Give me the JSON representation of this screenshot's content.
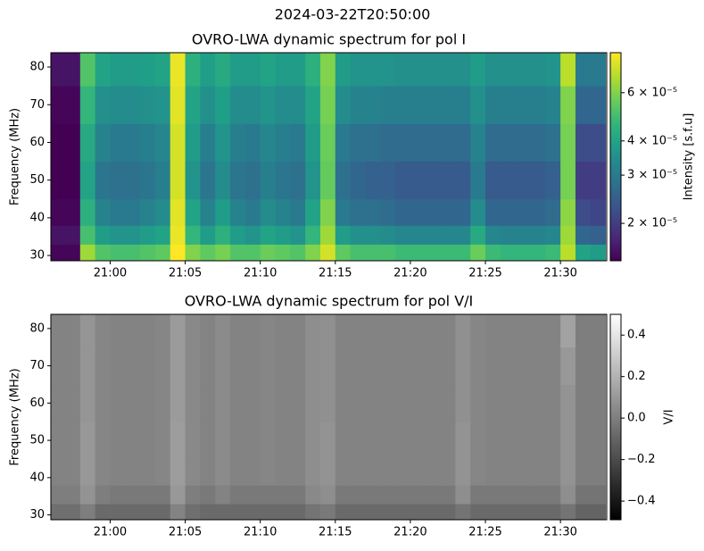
{
  "title": "2024-03-22T20:50:00",
  "chart_data": [
    {
      "type": "heatmap",
      "title": "OVRO-LWA dynamic spectrum for pol I",
      "ylabel": "Frequency (MHz)",
      "colorbar_label": "Intensity [s.f.u]",
      "colormap": "viridis",
      "zscale": "log",
      "x": [
        "20:56",
        "20:57",
        "20:58",
        "20:59",
        "21:00",
        "21:01",
        "21:02",
        "21:03",
        "21:04",
        "21:05",
        "21:06",
        "21:07",
        "21:08",
        "21:09",
        "21:10",
        "21:11",
        "21:12",
        "21:13",
        "21:14",
        "21:15",
        "21:16",
        "21:17",
        "21:18",
        "21:19",
        "21:20",
        "21:21",
        "21:22",
        "21:23",
        "21:24",
        "21:25",
        "21:26",
        "21:27",
        "21:28",
        "21:29",
        "21:30",
        "21:31",
        "21:32",
        "21:33"
      ],
      "xlim": [
        "20:56:03",
        "21:33:05"
      ],
      "xticks": [
        "21:00",
        "21:05",
        "21:10",
        "21:15",
        "21:20",
        "21:25",
        "21:30"
      ],
      "y": [
        28.6,
        33,
        38,
        45,
        55,
        65,
        75,
        83.8
      ],
      "ylim": [
        28.6,
        83.8
      ],
      "yticks": [
        30,
        40,
        50,
        60,
        70,
        80
      ],
      "zlim": [
        1.46e-05,
        8.4e-05
      ],
      "zticks": [
        {
          "value": 2e-05,
          "label": "2 × 10⁻⁵"
        },
        {
          "value": 3e-05,
          "label": "3 × 10⁻⁵"
        },
        {
          "value": 4e-05,
          "label": "4 × 10⁻⁵"
        },
        {
          "value": 6e-05,
          "label": "6 × 10⁻⁵"
        }
      ],
      "z": [
        [
          1.5e-05,
          1.5e-05,
          6.5e-05,
          5.2e-05,
          5e-05,
          5e-05,
          5.2e-05,
          5.4e-05,
          8.4e-05,
          6e-05,
          5.4e-05,
          5.8e-05,
          5.2e-05,
          5.2e-05,
          5.6e-05,
          5.4e-05,
          5.2e-05,
          6e-05,
          7.5e-05,
          5.4e-05,
          5e-05,
          5e-05,
          5e-05,
          4.8e-05,
          4.8e-05,
          4.8e-05,
          4.8e-05,
          4.8e-05,
          5.6e-05,
          4.8e-05,
          4.6e-05,
          4.6e-05,
          4.6e-05,
          4.8e-05,
          7e-05,
          4e-05,
          3.8e-05
        ],
        [
          1.6e-05,
          1.6e-05,
          5e-05,
          3.8e-05,
          3.6e-05,
          3.6e-05,
          3.8e-05,
          4e-05,
          8e-05,
          4.6e-05,
          3.8e-05,
          4.4e-05,
          3.8e-05,
          3.6e-05,
          4e-05,
          3.8e-05,
          3.6e-05,
          4.6e-05,
          6.5e-05,
          3.8e-05,
          3.5e-05,
          3.5e-05,
          3.4e-05,
          3.3e-05,
          3.3e-05,
          3.3e-05,
          3.3e-05,
          3.3e-05,
          4.2e-05,
          3.3e-05,
          3.2e-05,
          3.2e-05,
          3.2e-05,
          3.3e-05,
          6.5e-05,
          2.6e-05,
          2.5e-05
        ],
        [
          1.5e-05,
          1.5e-05,
          4.4e-05,
          3.2e-05,
          3e-05,
          3e-05,
          3.2e-05,
          3.4e-05,
          7.8e-05,
          4e-05,
          3.2e-05,
          3.8e-05,
          3.2e-05,
          3e-05,
          3.4e-05,
          3.2e-05,
          3e-05,
          4e-05,
          6e-05,
          3e-05,
          2.8e-05,
          2.8e-05,
          2.7e-05,
          2.6e-05,
          2.6e-05,
          2.6e-05,
          2.6e-05,
          2.6e-05,
          3.4e-05,
          2.6e-05,
          2.6e-05,
          2.6e-05,
          2.6e-05,
          2.7e-05,
          6.2e-05,
          2.2e-05,
          2.1e-05
        ],
        [
          1.4e-05,
          1.4e-05,
          4e-05,
          2.9e-05,
          2.8e-05,
          2.8e-05,
          2.9e-05,
          3.1e-05,
          7.5e-05,
          3.6e-05,
          2.9e-05,
          3.4e-05,
          2.9e-05,
          2.8e-05,
          3.1e-05,
          2.9e-05,
          2.8e-05,
          3.6e-05,
          5.5e-05,
          2.8e-05,
          2.6e-05,
          2.5e-05,
          2.5e-05,
          2.4e-05,
          2.4e-05,
          2.4e-05,
          2.4e-05,
          2.4e-05,
          3e-05,
          2.4e-05,
          2.4e-05,
          2.4e-05,
          2.4e-05,
          2.5e-05,
          5.8e-05,
          2e-05,
          2e-05
        ],
        [
          1.4e-05,
          1.4e-05,
          4.2e-05,
          3.2e-05,
          3e-05,
          3e-05,
          3.1e-05,
          3.3e-05,
          7.5e-05,
          3.8e-05,
          3.1e-05,
          3.6e-05,
          3.1e-05,
          3e-05,
          3.3e-05,
          3.1e-05,
          3e-05,
          3.8e-05,
          5.6e-05,
          3e-05,
          2.8e-05,
          2.8e-05,
          2.7e-05,
          2.7e-05,
          2.7e-05,
          2.7e-05,
          2.7e-05,
          2.7e-05,
          3.2e-05,
          2.7e-05,
          2.7e-05,
          2.7e-05,
          2.7e-05,
          2.8e-05,
          5.8e-05,
          2.2e-05,
          2.2e-05
        ],
        [
          1.5e-05,
          1.5e-05,
          4.6e-05,
          3.5e-05,
          3.4e-05,
          3.4e-05,
          3.5e-05,
          3.6e-05,
          7.8e-05,
          4e-05,
          3.5e-05,
          3.9e-05,
          3.4e-05,
          3.4e-05,
          3.6e-05,
          3.4e-05,
          3.4e-05,
          4e-05,
          5.8e-05,
          3.4e-05,
          3.2e-05,
          3.2e-05,
          3.1e-05,
          3.1e-05,
          3.1e-05,
          3.1e-05,
          3.1e-05,
          3.1e-05,
          3.5e-05,
          3.1e-05,
          3.1e-05,
          3.1e-05,
          3.1e-05,
          3.2e-05,
          6e-05,
          2.6e-05,
          2.6e-05
        ],
        [
          1.6e-05,
          1.6e-05,
          5.2e-05,
          4e-05,
          3.8e-05,
          3.8e-05,
          3.9e-05,
          4e-05,
          8e-05,
          4.4e-05,
          3.9e-05,
          4.2e-05,
          3.8e-05,
          3.8e-05,
          4e-05,
          3.8e-05,
          3.8e-05,
          4.4e-05,
          6e-05,
          3.8e-05,
          3.6e-05,
          3.6e-05,
          3.6e-05,
          3.5e-05,
          3.5e-05,
          3.5e-05,
          3.5e-05,
          3.5e-05,
          3.8e-05,
          3.5e-05,
          3.5e-05,
          3.5e-05,
          3.5e-05,
          3.6e-05,
          7e-05,
          3e-05,
          3e-05
        ]
      ]
    },
    {
      "type": "heatmap",
      "title": "OVRO-LWA dynamic spectrum for pol V/I",
      "ylabel": "Frequency (MHz)",
      "colorbar_label": "V/I",
      "colormap": "gray",
      "zscale": "linear",
      "x": [
        "20:56",
        "20:57",
        "20:58",
        "20:59",
        "21:00",
        "21:01",
        "21:02",
        "21:03",
        "21:04",
        "21:05",
        "21:06",
        "21:07",
        "21:08",
        "21:09",
        "21:10",
        "21:11",
        "21:12",
        "21:13",
        "21:14",
        "21:15",
        "21:16",
        "21:17",
        "21:18",
        "21:19",
        "21:20",
        "21:21",
        "21:22",
        "21:23",
        "21:24",
        "21:25",
        "21:26",
        "21:27",
        "21:28",
        "21:29",
        "21:30",
        "21:31",
        "21:32",
        "21:33"
      ],
      "xlim": [
        "20:56:03",
        "21:33:05"
      ],
      "xticks": [
        "21:00",
        "21:05",
        "21:10",
        "21:15",
        "21:20",
        "21:25",
        "21:30"
      ],
      "y": [
        28.6,
        33,
        38,
        45,
        55,
        65,
        75,
        83.8
      ],
      "ylim": [
        28.7,
        83.8
      ],
      "yticks": [
        30,
        40,
        50,
        60,
        70,
        80
      ],
      "zlim": [
        -0.49,
        0.5
      ],
      "zticks": [
        {
          "value": -0.4,
          "label": "−0.4"
        },
        {
          "value": -0.2,
          "label": "−0.2"
        },
        {
          "value": 0,
          "label": "0.0"
        },
        0.2,
        0.4
      ],
      "z": [
        [
          -0.06,
          -0.06,
          0.0,
          -0.08,
          -0.08,
          -0.08,
          -0.08,
          -0.08,
          0.02,
          -0.06,
          -0.08,
          -0.08,
          -0.08,
          -0.08,
          -0.08,
          -0.08,
          -0.08,
          -0.04,
          -0.02,
          -0.08,
          -0.08,
          -0.08,
          -0.08,
          -0.08,
          -0.08,
          -0.08,
          -0.08,
          -0.04,
          -0.08,
          -0.08,
          -0.08,
          -0.08,
          -0.08,
          -0.08,
          -0.04,
          -0.1,
          -0.1
        ],
        [
          0.0,
          0.0,
          0.08,
          0.0,
          -0.02,
          -0.02,
          -0.02,
          -0.02,
          0.1,
          0.0,
          -0.02,
          0.02,
          -0.02,
          -0.02,
          -0.02,
          -0.02,
          -0.02,
          0.04,
          0.06,
          -0.02,
          -0.02,
          -0.02,
          -0.02,
          -0.02,
          -0.02,
          -0.02,
          -0.02,
          0.06,
          -0.02,
          -0.02,
          -0.02,
          -0.02,
          -0.02,
          -0.02,
          0.06,
          -0.04,
          -0.04
        ],
        [
          0.02,
          0.02,
          0.1,
          0.03,
          0.02,
          0.02,
          0.02,
          0.03,
          0.12,
          0.04,
          0.02,
          0.05,
          0.02,
          0.02,
          0.03,
          0.02,
          0.02,
          0.06,
          0.08,
          0.02,
          0.02,
          0.02,
          0.02,
          0.02,
          0.02,
          0.02,
          0.02,
          0.08,
          0.03,
          0.02,
          0.02,
          0.02,
          0.02,
          0.02,
          0.08,
          0.0,
          0.0
        ],
        [
          0.02,
          0.02,
          0.1,
          0.03,
          0.02,
          0.02,
          0.02,
          0.03,
          0.12,
          0.04,
          0.02,
          0.05,
          0.02,
          0.02,
          0.03,
          0.02,
          0.02,
          0.06,
          0.08,
          0.02,
          0.02,
          0.02,
          0.02,
          0.02,
          0.02,
          0.02,
          0.02,
          0.08,
          0.03,
          0.02,
          0.02,
          0.02,
          0.02,
          0.02,
          0.08,
          0.0,
          0.0
        ],
        [
          0.02,
          0.02,
          0.09,
          0.03,
          0.02,
          0.02,
          0.02,
          0.03,
          0.11,
          0.04,
          0.02,
          0.05,
          0.02,
          0.02,
          0.03,
          0.02,
          0.02,
          0.06,
          0.07,
          0.02,
          0.02,
          0.02,
          0.02,
          0.02,
          0.02,
          0.02,
          0.02,
          0.07,
          0.03,
          0.02,
          0.02,
          0.02,
          0.02,
          0.02,
          0.08,
          0.0,
          0.0
        ],
        [
          0.02,
          0.02,
          0.09,
          0.03,
          0.02,
          0.02,
          0.02,
          0.03,
          0.11,
          0.04,
          0.02,
          0.05,
          0.02,
          0.02,
          0.03,
          0.02,
          0.02,
          0.06,
          0.07,
          0.02,
          0.02,
          0.02,
          0.02,
          0.02,
          0.02,
          0.02,
          0.02,
          0.07,
          0.03,
          0.02,
          0.02,
          0.02,
          0.02,
          0.02,
          0.1,
          0.0,
          0.0
        ],
        [
          0.02,
          0.02,
          0.09,
          0.03,
          0.02,
          0.02,
          0.02,
          0.03,
          0.11,
          0.04,
          0.02,
          0.05,
          0.02,
          0.02,
          0.03,
          0.02,
          0.02,
          0.06,
          0.07,
          0.02,
          0.02,
          0.02,
          0.02,
          0.02,
          0.02,
          0.02,
          0.02,
          0.07,
          0.03,
          0.02,
          0.02,
          0.02,
          0.02,
          0.02,
          0.14,
          0.0,
          0.0
        ]
      ]
    }
  ]
}
